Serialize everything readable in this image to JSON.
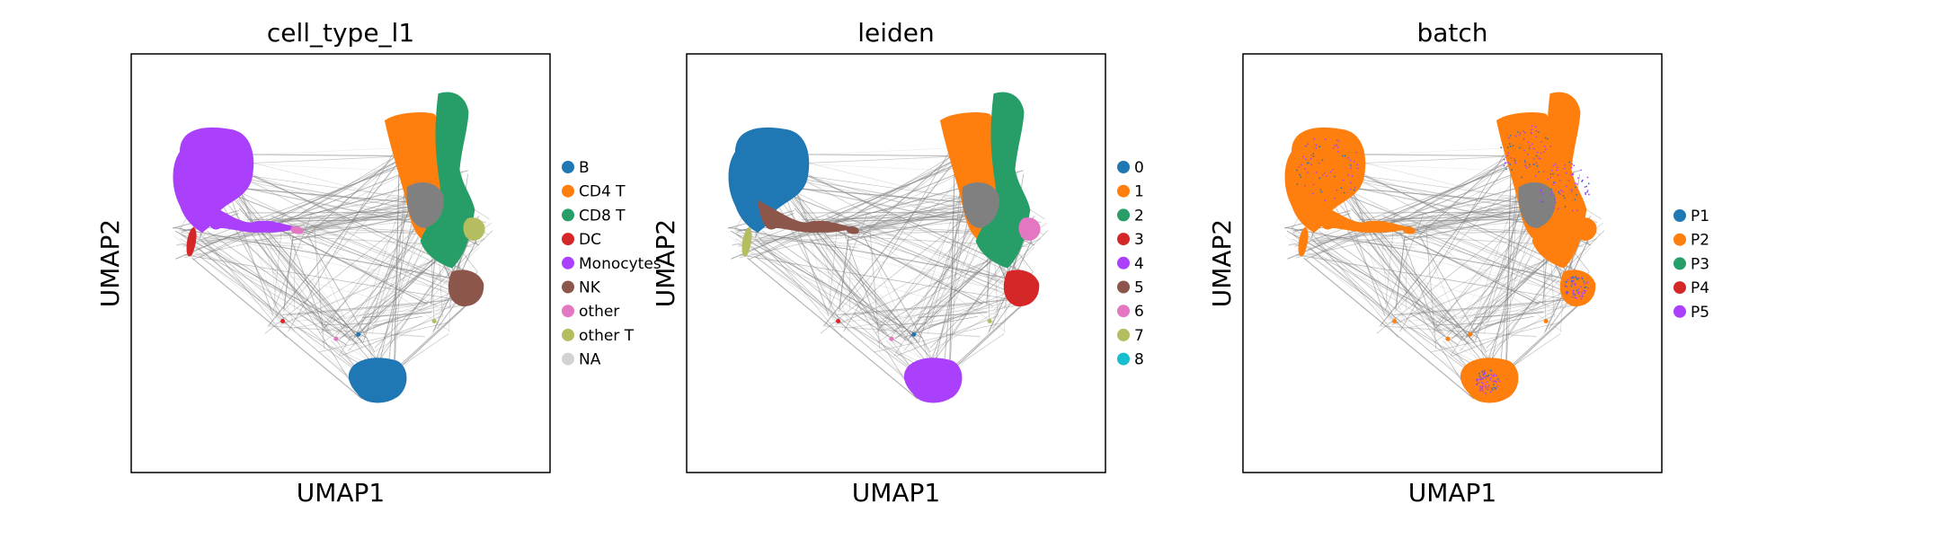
{
  "chart_data": [
    {
      "type": "scatter",
      "title": "cell_type_l1",
      "xlabel": "UMAP1",
      "ylabel": "UMAP2",
      "legend_position": "right",
      "grid": false,
      "series": [
        {
          "name": "B",
          "color": "#1f77b4"
        },
        {
          "name": "CD4 T",
          "color": "#ff7f0e"
        },
        {
          "name": "CD8 T",
          "color": "#279e68"
        },
        {
          "name": "DC",
          "color": "#d62728"
        },
        {
          "name": "Monocytes",
          "color": "#aa40fc"
        },
        {
          "name": "NK",
          "color": "#8c564b"
        },
        {
          "name": "other",
          "color": "#e377c2"
        },
        {
          "name": "other T",
          "color": "#b5bd61"
        },
        {
          "name": "NA",
          "color": "#d3d3d3"
        }
      ]
    },
    {
      "type": "scatter",
      "title": "leiden",
      "xlabel": "UMAP1",
      "ylabel": "UMAP2",
      "legend_position": "right",
      "grid": false,
      "series": [
        {
          "name": "0",
          "color": "#1f77b4"
        },
        {
          "name": "1",
          "color": "#ff7f0e"
        },
        {
          "name": "2",
          "color": "#279e68"
        },
        {
          "name": "3",
          "color": "#d62728"
        },
        {
          "name": "4",
          "color": "#aa40fc"
        },
        {
          "name": "5",
          "color": "#8c564b"
        },
        {
          "name": "6",
          "color": "#e377c2"
        },
        {
          "name": "7",
          "color": "#b5bd61"
        },
        {
          "name": "8",
          "color": "#17becf"
        }
      ]
    },
    {
      "type": "scatter",
      "title": "batch",
      "xlabel": "UMAP1",
      "ylabel": "UMAP2",
      "legend_position": "right",
      "grid": false,
      "series": [
        {
          "name": "P1",
          "color": "#1f77b4"
        },
        {
          "name": "P2",
          "color": "#ff7f0e"
        },
        {
          "name": "P3",
          "color": "#279e68"
        },
        {
          "name": "P4",
          "color": "#d62728"
        },
        {
          "name": "P5",
          "color": "#aa40fc"
        }
      ]
    }
  ],
  "edge_color": "#808080"
}
